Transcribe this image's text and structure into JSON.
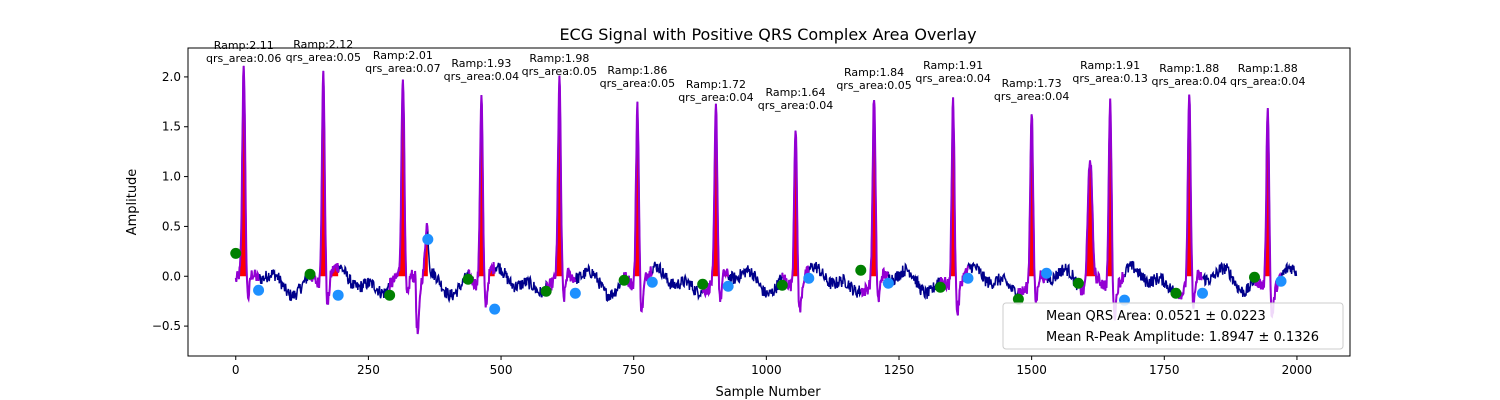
{
  "chart_data": {
    "type": "line",
    "title": "ECG Signal with Positive QRS Complex Area Overlay",
    "xlabel": "Sample Number",
    "ylabel": "Amplitude",
    "xlim": [
      -90,
      2100
    ],
    "ylim": [
      -0.8,
      2.29
    ],
    "xticks": [
      0,
      250,
      500,
      750,
      1000,
      1250,
      1500,
      1750,
      2000
    ],
    "xtick_labels": [
      "0",
      "250",
      "500",
      "750",
      "1000",
      "1250",
      "1500",
      "1750",
      "2000"
    ],
    "yticks": [
      -0.5,
      0.0,
      0.5,
      1.0,
      1.5,
      2.0
    ],
    "ytick_labels": [
      "−0.5",
      "0.0",
      "0.5",
      "1.0",
      "1.5",
      "2.0"
    ],
    "grid": false,
    "colors": {
      "signal": "#00008b",
      "qrs_segment": "#9400d3",
      "qrs_area": "#ff0000",
      "onset_marker": "#008000",
      "offset_marker": "#1e90ff"
    },
    "beats": [
      {
        "peak": 15,
        "ramp": 2.11,
        "ramp_label": "Ramp:2.11",
        "area_label": "qrs_area:0.06",
        "onset": [
          0,
          0.23
        ],
        "offset": [
          43,
          -0.14
        ]
      },
      {
        "peak": 165,
        "ramp": 2.12,
        "ramp_label": "Ramp:2.12",
        "area_label": "qrs_area:0.05",
        "onset": [
          140,
          0.02
        ],
        "offset": [
          193,
          -0.19
        ]
      },
      {
        "peak": 315,
        "ramp": 2.01,
        "ramp_label": "Ramp:2.01",
        "area_label": "qrs_area:0.07",
        "onset": [
          290,
          -0.19
        ],
        "offset": [
          362,
          0.37
        ]
      },
      {
        "peak": 463,
        "ramp": 1.93,
        "ramp_label": "Ramp:1.93",
        "area_label": "qrs_area:0.04",
        "onset": [
          438,
          -0.03
        ],
        "offset": [
          488,
          -0.33
        ]
      },
      {
        "peak": 610,
        "ramp": 1.98,
        "ramp_label": "Ramp:1.98",
        "area_label": "qrs_area:0.05",
        "onset": [
          585,
          -0.15
        ],
        "offset": [
          640,
          -0.17
        ]
      },
      {
        "peak": 757,
        "ramp": 1.86,
        "ramp_label": "Ramp:1.86",
        "area_label": "qrs_area:0.05",
        "onset": [
          732,
          -0.04
        ],
        "offset": [
          785,
          -0.06
        ]
      },
      {
        "peak": 905,
        "ramp": 1.72,
        "ramp_label": "Ramp:1.72",
        "area_label": "qrs_area:0.04",
        "onset": [
          880,
          -0.08
        ],
        "offset": [
          928,
          -0.1
        ]
      },
      {
        "peak": 1055,
        "ramp": 1.64,
        "ramp_label": "Ramp:1.64",
        "area_label": "qrs_area:0.04",
        "onset": [
          1030,
          -0.09
        ],
        "offset": [
          1080,
          -0.02
        ]
      },
      {
        "peak": 1203,
        "ramp": 1.84,
        "ramp_label": "Ramp:1.84",
        "area_label": "qrs_area:0.05",
        "onset": [
          1178,
          0.06
        ],
        "offset": [
          1230,
          -0.07
        ]
      },
      {
        "peak": 1352,
        "ramp": 1.91,
        "ramp_label": "Ramp:1.91",
        "area_label": "qrs_area:0.04",
        "onset": [
          1328,
          -0.11
        ],
        "offset": [
          1380,
          -0.02
        ]
      },
      {
        "peak": 1500,
        "ramp": 1.73,
        "ramp_label": "Ramp:1.73",
        "area_label": "qrs_area:0.04",
        "onset": [
          1475,
          -0.23
        ],
        "offset": [
          1528,
          0.03
        ]
      },
      {
        "peak": 1648,
        "ramp": 1.91,
        "ramp_label": "Ramp:1.91",
        "area_label": "qrs_area:0.13",
        "onset": [
          1588,
          -0.07
        ],
        "offset": [
          1675,
          -0.24
        ]
      },
      {
        "peak": 1797,
        "ramp": 1.88,
        "ramp_label": "Ramp:1.88",
        "area_label": "qrs_area:0.04",
        "onset": [
          1772,
          -0.17
        ],
        "offset": [
          1822,
          -0.17
        ]
      },
      {
        "peak": 1945,
        "ramp": 1.88,
        "ramp_label": "Ramp:1.88",
        "area_label": "qrs_area:0.04",
        "onset": [
          1920,
          -0.01
        ],
        "offset": [
          1970,
          -0.05
        ]
      }
    ],
    "extra_peak": {
      "x": 1610,
      "y": 1.38
    },
    "legend": {
      "placement": "lower-right",
      "entries": [
        "Mean QRS Area: 0.0521 ± 0.0223",
        "Mean R-Peak Amplitude: 1.8947 ± 0.1326"
      ]
    }
  }
}
